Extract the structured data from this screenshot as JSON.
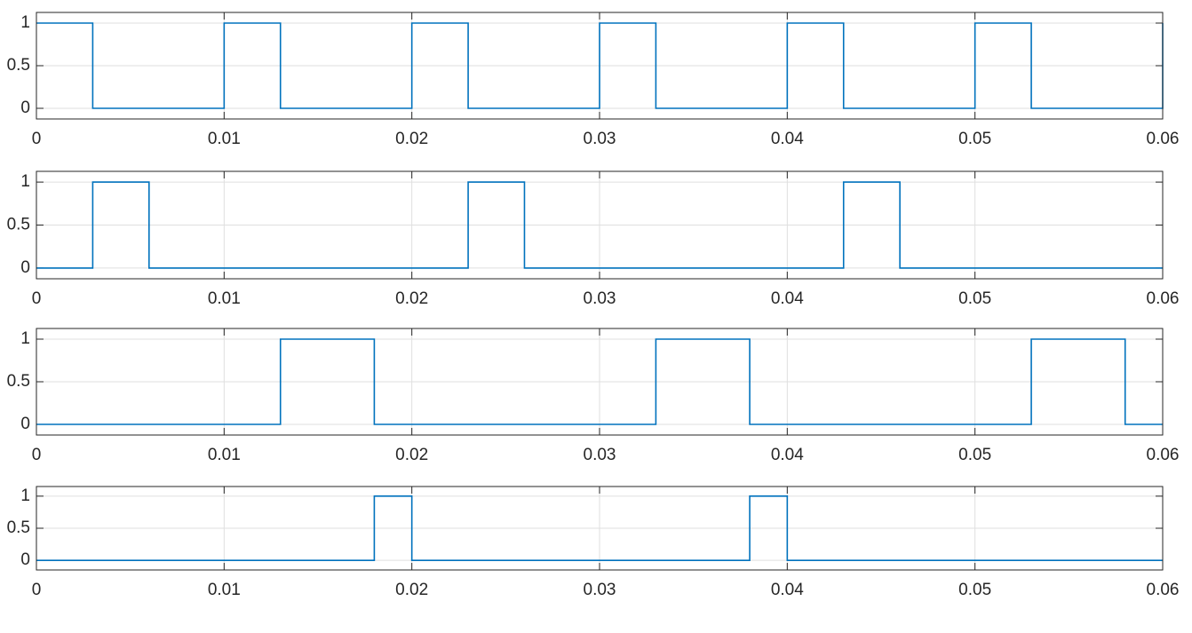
{
  "chart_data": [
    {
      "type": "line",
      "color": "#0072BD",
      "grid": true,
      "xlim": [
        0,
        0.06
      ],
      "xticks": [
        0,
        0.01,
        0.02,
        0.03,
        0.04,
        0.05,
        0.06
      ],
      "ylim": [
        -0.125,
        1.125
      ],
      "yticks": [
        0,
        0.5,
        1
      ],
      "x": [
        0,
        0.003,
        0.003,
        0.01,
        0.01,
        0.013,
        0.013,
        0.02,
        0.02,
        0.023,
        0.023,
        0.03,
        0.03,
        0.033,
        0.033,
        0.04,
        0.04,
        0.043,
        0.043,
        0.05,
        0.05,
        0.053,
        0.053,
        0.06,
        0.06
      ],
      "values": [
        1,
        1,
        0,
        0,
        1,
        1,
        0,
        0,
        1,
        1,
        0,
        0,
        1,
        1,
        0,
        0,
        1,
        1,
        0,
        0,
        1,
        1,
        0,
        0,
        1
      ]
    },
    {
      "type": "line",
      "color": "#0072BD",
      "grid": true,
      "xlim": [
        0,
        0.06
      ],
      "xticks": [
        0,
        0.01,
        0.02,
        0.03,
        0.04,
        0.05,
        0.06
      ],
      "ylim": [
        -0.125,
        1.125
      ],
      "yticks": [
        0,
        0.5,
        1
      ],
      "x": [
        0,
        0.003,
        0.003,
        0.006,
        0.006,
        0.023,
        0.023,
        0.026,
        0.026,
        0.043,
        0.043,
        0.046,
        0.046,
        0.06
      ],
      "values": [
        0,
        0,
        1,
        1,
        0,
        0,
        1,
        1,
        0,
        0,
        1,
        1,
        0,
        0
      ]
    },
    {
      "type": "line",
      "color": "#0072BD",
      "grid": true,
      "xlim": [
        0,
        0.06
      ],
      "xticks": [
        0,
        0.01,
        0.02,
        0.03,
        0.04,
        0.05,
        0.06
      ],
      "ylim": [
        -0.125,
        1.125
      ],
      "yticks": [
        0,
        0.5,
        1
      ],
      "x": [
        0,
        0.013,
        0.013,
        0.018,
        0.018,
        0.033,
        0.033,
        0.038,
        0.038,
        0.053,
        0.053,
        0.058,
        0.058,
        0.06
      ],
      "values": [
        0,
        0,
        1,
        1,
        0,
        0,
        1,
        1,
        0,
        0,
        1,
        1,
        0,
        0
      ]
    },
    {
      "type": "line",
      "color": "#0072BD",
      "grid": true,
      "xlim": [
        0,
        0.06
      ],
      "xticks": [
        0,
        0.01,
        0.02,
        0.03,
        0.04,
        0.05,
        0.06
      ],
      "ylim": [
        -0.15,
        1.15
      ],
      "yticks": [
        0,
        0.5,
        1
      ],
      "x": [
        0,
        0.018,
        0.018,
        0.02,
        0.02,
        0.038,
        0.038,
        0.04,
        0.04,
        0.06
      ],
      "values": [
        0,
        0,
        1,
        1,
        0,
        0,
        1,
        1,
        0,
        0
      ]
    }
  ]
}
